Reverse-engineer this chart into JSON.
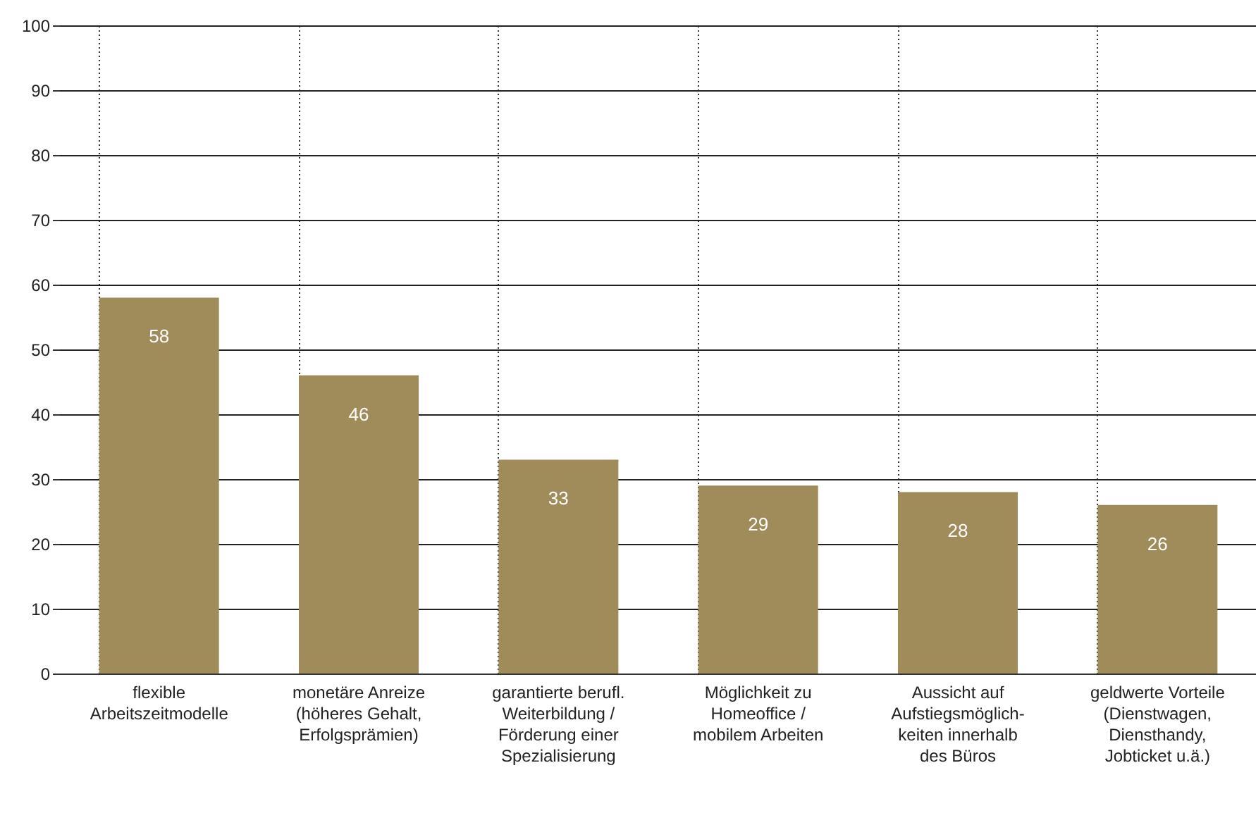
{
  "chart_data": {
    "type": "bar",
    "categories": [
      "flexible\nArbeitszeitmodelle",
      "monetäre Anreize\n(höheres Gehalt,\nErfolgsprämien)",
      "garantierte berufl.\nWeiterbildung /\nFörderung einer\nSpezialisierung",
      "Möglichkeit zu\nHomeoffice /\nmobilem Arbeiten",
      "Aussicht auf\nAufstiegsmöglich-\nkeiten innerhalb\ndes Büros",
      "geldwerte Vorteile\n(Dienstwagen,\nDiensthandy,\nJobticket u.ä.)"
    ],
    "values": [
      58,
      46,
      33,
      29,
      28,
      26
    ],
    "color": "#a08c5a",
    "ylim": [
      0,
      100
    ],
    "yticks": [
      0,
      10,
      20,
      30,
      40,
      50,
      60,
      70,
      80,
      90,
      100
    ],
    "grid": true,
    "data_labels": true
  }
}
